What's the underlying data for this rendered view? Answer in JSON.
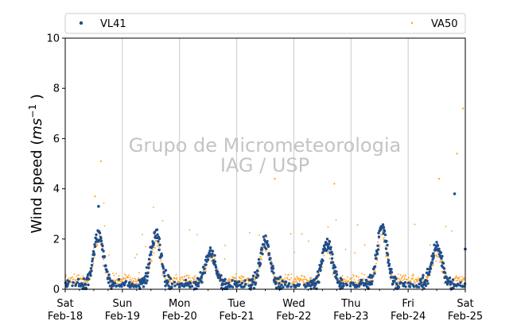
{
  "chart_data": {
    "type": "scatter",
    "ylabel": "Wind speed (ms⁻¹ )",
    "ylabel_parts": {
      "prefix": "Wind speed (",
      "unit": "ms",
      "exp": "−1",
      "suffix": " )"
    },
    "ylim": [
      0,
      10
    ],
    "yticks": [
      0,
      2,
      4,
      6,
      8,
      10
    ],
    "xlim": [
      "2017-02-18 00:00",
      "2017-02-25 00:00"
    ],
    "xticks": [
      {
        "day": "Sat",
        "date": "Feb-18"
      },
      {
        "day": "Sun",
        "date": "Feb-19"
      },
      {
        "day": "Mon",
        "date": "Feb-20"
      },
      {
        "day": "Tue",
        "date": "Feb-21"
      },
      {
        "day": "Wed",
        "date": "Feb-22"
      },
      {
        "day": "Thu",
        "date": "Feb-23"
      },
      {
        "day": "Fri",
        "date": "Feb-24"
      },
      {
        "day": "Sat",
        "date": "Feb-25"
      }
    ],
    "grid": "vertical lines at day boundaries",
    "legend": {
      "placement": "top",
      "entries": [
        "VL41",
        "VA50"
      ]
    },
    "watermark": [
      "Grupo de Micrometeorologia",
      "IAG / USP"
    ],
    "series": [
      {
        "name": "VL41",
        "color": "#1f4e8c",
        "marker": "dot",
        "diurnal_peaks_ms": [
          {
            "day": "Feb-18",
            "peak_hour": 14,
            "peak": 2.0
          },
          {
            "day": "Feb-19",
            "peak_hour": 14,
            "peak": 2.0
          },
          {
            "day": "Feb-20",
            "peak_hour": 13,
            "peak": 1.3
          },
          {
            "day": "Feb-21",
            "peak_hour": 12,
            "peak": 1.8
          },
          {
            "day": "Feb-22",
            "peak_hour": 14,
            "peak": 1.7
          },
          {
            "day": "Feb-23",
            "peak_hour": 13,
            "peak": 2.3
          },
          {
            "day": "Feb-24",
            "peak_hour": 12,
            "peak": 1.6
          }
        ],
        "notable_points": [
          {
            "x": "2017-02-18 14:00",
            "y": 3.3
          },
          {
            "x": "2017-02-24 19:30",
            "y": 3.8
          },
          {
            "x": "2017-02-24 23:59",
            "y": 1.6
          }
        ]
      },
      {
        "name": "VA50",
        "color": "#ff9f1c",
        "marker": "small-dot",
        "notable_points": [
          {
            "x": "2017-02-18 15:00",
            "y": 5.1
          },
          {
            "x": "2017-02-18 12:30",
            "y": 3.7
          },
          {
            "x": "2017-02-21 16:00",
            "y": 4.4
          },
          {
            "x": "2017-02-22 17:00",
            "y": 4.2
          },
          {
            "x": "2017-02-24 13:00",
            "y": 4.4
          },
          {
            "x": "2017-02-24 20:30",
            "y": 5.4
          },
          {
            "x": "2017-02-24 23:00",
            "y": 7.2
          }
        ]
      }
    ]
  }
}
